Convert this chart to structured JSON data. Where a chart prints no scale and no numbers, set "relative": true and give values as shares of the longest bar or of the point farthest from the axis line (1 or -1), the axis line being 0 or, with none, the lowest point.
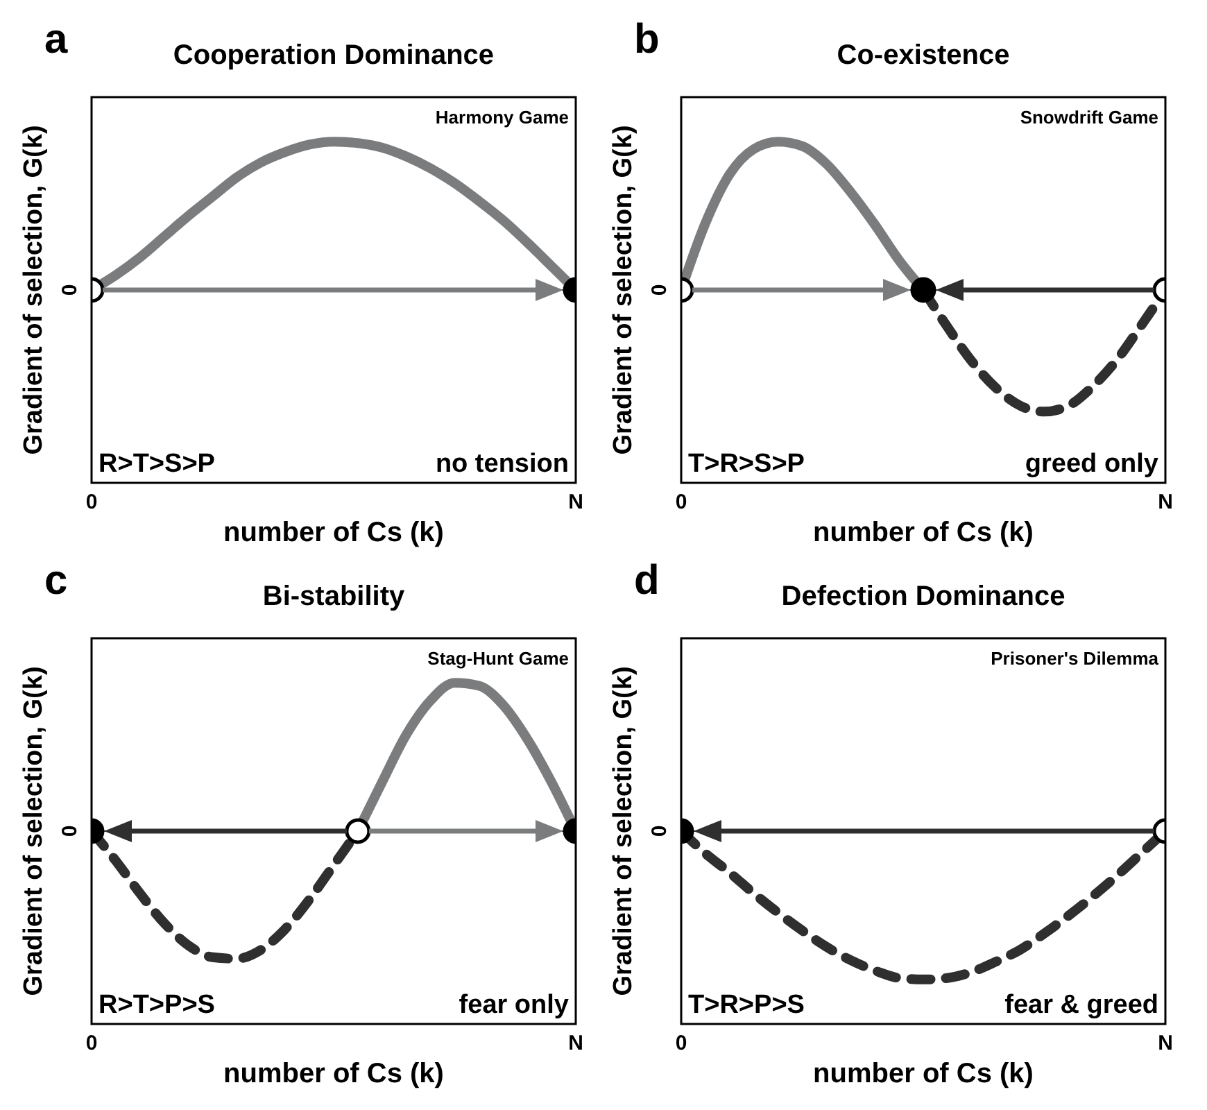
{
  "chart_data": [
    {
      "type": "line",
      "title": "Cooperation Dominance",
      "xlabel": "number of  Cs (k)",
      "ylabel": "Gradient of selection, G(k)",
      "annotations": [
        "a",
        "Harmony Game",
        "R>T>S>P",
        "no tension"
      ],
      "relative": true,
      "categories": [
        "0",
        null,
        null,
        null,
        null,
        null,
        null,
        null,
        null,
        null,
        null,
        null,
        null,
        null,
        null,
        null,
        null,
        null,
        null,
        null,
        "N"
      ],
      "ref_lines": [
        {
          "axis": "y",
          "value": 0,
          "label": "0"
        }
      ],
      "series": [
        {
          "color": "#7a7c7e",
          "line_style": "solid",
          "values": [
            0,
            0.1,
            0.22,
            0.36,
            0.5,
            0.63,
            0.76,
            0.86,
            0.93,
            0.98,
            1,
            0.99,
            0.96,
            0.9,
            0.82,
            0.72,
            0.6,
            0.47,
            0.32,
            0.16,
            0
          ]
        },
        {
          "type": "scatter",
          "marker": "circle",
          "color": "#ffffff",
          "values": [
            0,
            null,
            null,
            null,
            null,
            null,
            null,
            null,
            null,
            null,
            null,
            null,
            null,
            null,
            null,
            null,
            null,
            null,
            null,
            null,
            null
          ]
        },
        {
          "type": "scatter",
          "marker": "circle",
          "color": "#000000",
          "values": [
            null,
            null,
            null,
            null,
            null,
            null,
            null,
            null,
            null,
            null,
            null,
            null,
            null,
            null,
            null,
            null,
            null,
            null,
            null,
            null,
            0
          ]
        }
      ]
    },
    {
      "type": "line",
      "title": "Co-existence",
      "xlabel": "number of Cs (k)",
      "ylabel": "Gradient of selection, G(k)",
      "annotations": [
        "b",
        "Snowdrift Game",
        "T>R>S>P",
        "greed only"
      ],
      "relative": true,
      "categories": [
        "0",
        null,
        null,
        null,
        null,
        null,
        null,
        null,
        null,
        null,
        null,
        null,
        null,
        null,
        null,
        null,
        null,
        null,
        null,
        null,
        "N"
      ],
      "ref_lines": [
        {
          "axis": "y",
          "value": 0,
          "label": "0"
        }
      ],
      "series": [
        {
          "color": "#7a7c7e",
          "line_style": "solid",
          "values": [
            0,
            0.45,
            0.78,
            0.95,
            1,
            0.97,
            0.85,
            0.66,
            0.44,
            0.2,
            0,
            null,
            null,
            null,
            null,
            null,
            null,
            null,
            null,
            null,
            null
          ]
        },
        {
          "color": "#2f2f2f",
          "line_style": "dashed",
          "values": [
            null,
            null,
            null,
            null,
            null,
            null,
            null,
            null,
            null,
            null,
            0,
            -0.25,
            -0.48,
            -0.66,
            -0.78,
            -0.82,
            -0.78,
            -0.65,
            -0.47,
            -0.24,
            0
          ]
        },
        {
          "type": "scatter",
          "marker": "circle",
          "color": "#ffffff",
          "values": [
            0,
            null,
            null,
            null,
            null,
            null,
            null,
            null,
            null,
            null,
            null,
            null,
            null,
            null,
            null,
            null,
            null,
            null,
            null,
            null,
            0
          ]
        },
        {
          "type": "scatter",
          "marker": "circle",
          "color": "#000000",
          "values": [
            null,
            null,
            null,
            null,
            null,
            null,
            null,
            null,
            null,
            null,
            0,
            null,
            null,
            null,
            null,
            null,
            null,
            null,
            null,
            null,
            null
          ]
        }
      ]
    },
    {
      "type": "line",
      "title": "Bi-stability",
      "xlabel": "number of Cs (k)",
      "ylabel": "Gradient of selection, G(k)",
      "annotations": [
        "c",
        "Stag-Hunt Game",
        "R>T>P>S",
        "fear only"
      ],
      "relative": true,
      "categories": [
        "0",
        null,
        null,
        null,
        null,
        null,
        null,
        null,
        null,
        null,
        null,
        null,
        null,
        null,
        null,
        null,
        null,
        null,
        null,
        null,
        "N"
      ],
      "ref_lines": [
        {
          "axis": "y",
          "value": 0,
          "label": "0"
        }
      ],
      "series": [
        {
          "color": "#2f2f2f",
          "line_style": "dashed",
          "values": [
            0,
            -0.2,
            -0.42,
            -0.62,
            -0.77,
            -0.85,
            -0.86,
            -0.8,
            -0.66,
            -0.46,
            -0.23,
            0,
            null,
            null,
            null,
            null,
            null,
            null,
            null,
            null,
            null
          ]
        },
        {
          "color": "#7a7c7e",
          "line_style": "solid",
          "values": [
            null,
            null,
            null,
            null,
            null,
            null,
            null,
            null,
            null,
            null,
            null,
            0,
            0.33,
            0.65,
            0.88,
            1,
            0.98,
            0.85,
            0.62,
            0.33,
            0
          ]
        },
        {
          "type": "scatter",
          "marker": "circle",
          "color": "#ffffff",
          "values": [
            null,
            null,
            null,
            null,
            null,
            null,
            null,
            null,
            null,
            null,
            null,
            0,
            null,
            null,
            null,
            null,
            null,
            null,
            null,
            null,
            null
          ]
        },
        {
          "type": "scatter",
          "marker": "circle",
          "color": "#000000",
          "values": [
            0,
            null,
            null,
            null,
            null,
            null,
            null,
            null,
            null,
            null,
            null,
            null,
            null,
            null,
            null,
            null,
            null,
            null,
            null,
            null,
            0
          ]
        }
      ]
    },
    {
      "type": "line",
      "title": "Defection Dominance",
      "xlabel": "number of Cs (k)",
      "ylabel": "Gradient of selection, G(k)",
      "annotations": [
        "d",
        "Prisoner's Dilemma",
        "T>R>P>S",
        "fear & greed"
      ],
      "relative": true,
      "categories": [
        "0",
        null,
        null,
        null,
        null,
        null,
        null,
        null,
        null,
        null,
        null,
        null,
        null,
        null,
        null,
        null,
        null,
        null,
        null,
        null,
        "N"
      ],
      "ref_lines": [
        {
          "axis": "y",
          "value": 0,
          "label": "0"
        }
      ],
      "series": [
        {
          "color": "#2f2f2f",
          "line_style": "dashed",
          "values": [
            0,
            -0.15,
            -0.28,
            -0.42,
            -0.55,
            -0.67,
            -0.78,
            -0.87,
            -0.94,
            -0.99,
            -1,
            -0.99,
            -0.95,
            -0.88,
            -0.8,
            -0.69,
            -0.57,
            -0.44,
            -0.3,
            -0.15,
            0
          ]
        },
        {
          "type": "scatter",
          "marker": "circle",
          "color": "#000000",
          "values": [
            0,
            null,
            null,
            null,
            null,
            null,
            null,
            null,
            null,
            null,
            null,
            null,
            null,
            null,
            null,
            null,
            null,
            null,
            null,
            null,
            null
          ]
        },
        {
          "type": "scatter",
          "marker": "circle",
          "color": "#ffffff",
          "values": [
            null,
            null,
            null,
            null,
            null,
            null,
            null,
            null,
            null,
            null,
            null,
            null,
            null,
            null,
            null,
            null,
            null,
            null,
            null,
            null,
            0
          ]
        }
      ]
    }
  ]
}
